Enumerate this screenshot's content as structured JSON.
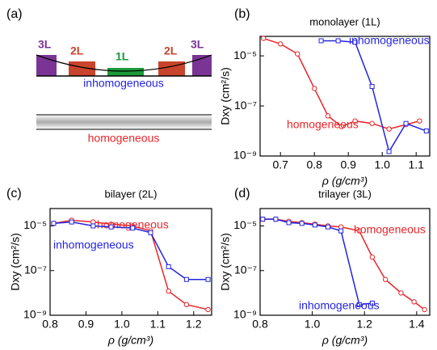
{
  "schematic": {
    "panel_label": "(a)",
    "layers": [
      "3L",
      "2L",
      "1L",
      "2L",
      "3L"
    ],
    "inhomogeneous": "inhomogeneous",
    "homogeneous": "homogeneous"
  },
  "chart_data": [
    {
      "type": "line",
      "panel_label": "(b)",
      "title": "monolayer (1L)",
      "xlabel": "ρ (g/cm³)",
      "ylabel": "Dxy (cm²/s)",
      "log_y": true,
      "xlim": [
        0.64,
        1.14
      ],
      "xticks": [
        0.7,
        0.8,
        0.9,
        {
          "value": 1.0,
          "label": "1.0"
        },
        1.1
      ],
      "ylim": [
        1e-09,
        6e-05
      ],
      "yticks": [
        {
          "value": 1e-09,
          "label": "10⁻⁹"
        },
        {
          "value": 1e-07,
          "label": "10⁻⁷"
        },
        {
          "value": 1e-05,
          "label": "10⁻⁵"
        }
      ],
      "series": [
        {
          "name": "homogeneous",
          "color": "#e8262a",
          "marker": "circle",
          "x": [
            0.65,
            0.7,
            0.75,
            0.8,
            0.84,
            0.88,
            0.92,
            0.97,
            1.02,
            1.07,
            1.11
          ],
          "values": [
            5e-05,
            3e-05,
            1.2e-05,
            5e-07,
            4e-08,
            1.5e-08,
            2.5e-08,
            2e-08,
            1.2e-08,
            1.8e-08,
            2.5e-08
          ]
        },
        {
          "name": "inhomogeneous",
          "color": "#2424e0",
          "marker": "square",
          "x": [
            0.82,
            0.87,
            0.92,
            0.97,
            1.02,
            1.07,
            1.13
          ],
          "values": [
            4e-05,
            4e-05,
            3.5e-05,
            6e-07,
            1.5e-09,
            2e-08,
            1e-08
          ]
        }
      ]
    },
    {
      "type": "line",
      "panel_label": "(c)",
      "title": "bilayer (2L)",
      "xlabel": "ρ (g/cm³)",
      "ylabel": "Dxy (cm²/s)",
      "log_y": true,
      "xlim": [
        0.8,
        1.25
      ],
      "xticks": [
        0.8,
        0.9,
        {
          "value": 1.0,
          "label": "1.0"
        },
        1.1,
        1.2
      ],
      "ylim": [
        1e-09,
        6e-05
      ],
      "yticks": [
        {
          "value": 1e-09,
          "label": "10⁻⁹"
        },
        {
          "value": 1e-07,
          "label": "10⁻⁷"
        },
        {
          "value": 1e-05,
          "label": "10⁻⁵"
        }
      ],
      "series": [
        {
          "name": "homogeneous",
          "color": "#e8262a",
          "marker": "circle",
          "x": [
            0.81,
            0.86,
            0.92,
            0.97,
            1.03,
            1.08,
            1.13,
            1.18,
            1.24
          ],
          "values": [
            1.3e-05,
            1.8e-05,
            1.5e-05,
            1.2e-05,
            1e-05,
            6e-06,
            1.2e-08,
            3e-09,
            1.8e-09
          ]
        },
        {
          "name": "inhomogeneous",
          "color": "#2424e0",
          "marker": "square",
          "x": [
            0.81,
            0.86,
            0.92,
            0.97,
            1.03,
            1.08,
            1.13,
            1.18,
            1.24
          ],
          "values": [
            1.3e-05,
            1.5e-05,
            1e-05,
            9e-06,
            8e-06,
            5e-06,
            1.5e-07,
            4e-08,
            4e-08
          ]
        }
      ]
    },
    {
      "type": "line",
      "panel_label": "(d)",
      "title": "trilayer (3L)",
      "xlabel": "ρ (g/cm³)",
      "ylabel": "Dxy (cm²/s)",
      "log_y": true,
      "xlim": [
        0.8,
        1.45
      ],
      "xticks": [
        0.8,
        {
          "value": 1.0,
          "label": "1.0"
        },
        1.2,
        1.4
      ],
      "ylim": [
        1e-09,
        6e-05
      ],
      "yticks": [
        {
          "value": 1e-09,
          "label": "10⁻⁹"
        },
        {
          "value": 1e-07,
          "label": "10⁻⁷"
        },
        {
          "value": 1e-05,
          "label": "10⁻⁵"
        }
      ],
      "series": [
        {
          "name": "homogeneous",
          "color": "#e8262a",
          "marker": "circle",
          "x": [
            0.81,
            0.86,
            0.91,
            0.96,
            1.01,
            1.06,
            1.11,
            1.18,
            1.23,
            1.28,
            1.34,
            1.39,
            1.43
          ],
          "values": [
            2e-05,
            2e-05,
            1.6e-05,
            1.4e-05,
            1.2e-05,
            1e-05,
            9e-06,
            6e-06,
            4e-07,
            4e-08,
            1e-08,
            4e-09,
            1.8e-09
          ]
        },
        {
          "name": "inhomogeneous",
          "color": "#2424e0",
          "marker": "square",
          "x": [
            0.81,
            0.86,
            0.91,
            0.96,
            1.01,
            1.06,
            1.11,
            1.18,
            1.23
          ],
          "values": [
            2e-05,
            2e-05,
            1.4e-05,
            1.3e-05,
            1.1e-05,
            9e-06,
            6e-06,
            3e-09,
            3.5e-09
          ]
        }
      ]
    }
  ]
}
